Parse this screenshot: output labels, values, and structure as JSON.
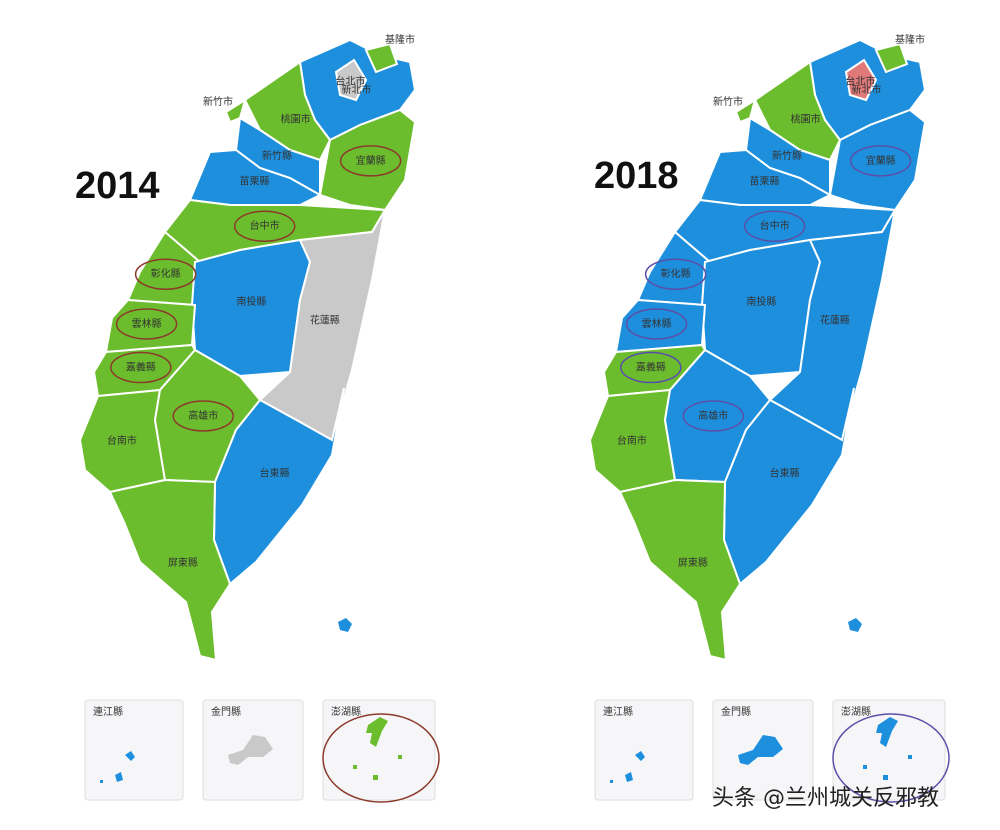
{
  "maps": [
    {
      "year": "2014",
      "circle_color": "#8b3a2a",
      "regions": [
        {
          "name": "新北市",
          "color": "#1e8fdd",
          "circled": false
        },
        {
          "name": "台北市",
          "color": "#c9c9c9",
          "circled": false
        },
        {
          "name": "基隆市",
          "color": "#6cbd2e",
          "circled": false
        },
        {
          "name": "宜蘭縣",
          "color": "#6cbd2e",
          "circled": true
        },
        {
          "name": "桃園市",
          "color": "#6cbd2e",
          "circled": false
        },
        {
          "name": "新竹縣",
          "color": "#1e8fdd",
          "circled": false
        },
        {
          "name": "新竹市",
          "color": "#6cbd2e",
          "circled": false
        },
        {
          "name": "苗栗縣",
          "color": "#1e8fdd",
          "circled": false
        },
        {
          "name": "台中市",
          "color": "#6cbd2e",
          "circled": true
        },
        {
          "name": "彰化縣",
          "color": "#6cbd2e",
          "circled": true
        },
        {
          "name": "南投縣",
          "color": "#1e8fdd",
          "circled": false
        },
        {
          "name": "花蓮縣",
          "color": "#c9c9c9",
          "circled": false
        },
        {
          "name": "雲林縣",
          "color": "#6cbd2e",
          "circled": true
        },
        {
          "name": "嘉義縣",
          "color": "#6cbd2e",
          "circled": true
        },
        {
          "name": "台南市",
          "color": "#6cbd2e",
          "circled": false
        },
        {
          "name": "高雄市",
          "color": "#6cbd2e",
          "circled": true
        },
        {
          "name": "台東縣",
          "color": "#1e8fdd",
          "circled": false
        },
        {
          "name": "屏東縣",
          "color": "#6cbd2e",
          "circled": false
        }
      ],
      "insets": [
        {
          "name": "連江縣",
          "color": "#1e8fdd",
          "circled": false
        },
        {
          "name": "金門縣",
          "color": "#c9c9c9",
          "circled": false
        },
        {
          "name": "澎湖縣",
          "color": "#6cbd2e",
          "circled": true
        }
      ]
    },
    {
      "year": "2018",
      "circle_color": "#5a4fa8",
      "regions": [
        {
          "name": "新北市",
          "color": "#1e8fdd",
          "circled": false
        },
        {
          "name": "台北市",
          "color": "#e07a7a",
          "circled": false
        },
        {
          "name": "基隆市",
          "color": "#6cbd2e",
          "circled": false
        },
        {
          "name": "宜蘭縣",
          "color": "#1e8fdd",
          "circled": true
        },
        {
          "name": "桃園市",
          "color": "#6cbd2e",
          "circled": false
        },
        {
          "name": "新竹縣",
          "color": "#1e8fdd",
          "circled": false
        },
        {
          "name": "新竹市",
          "color": "#6cbd2e",
          "circled": false
        },
        {
          "name": "苗栗縣",
          "color": "#1e8fdd",
          "circled": false
        },
        {
          "name": "台中市",
          "color": "#1e8fdd",
          "circled": true
        },
        {
          "name": "彰化縣",
          "color": "#1e8fdd",
          "circled": true
        },
        {
          "name": "南投縣",
          "color": "#1e8fdd",
          "circled": false
        },
        {
          "name": "花蓮縣",
          "color": "#1e8fdd",
          "circled": false
        },
        {
          "name": "雲林縣",
          "color": "#1e8fdd",
          "circled": true
        },
        {
          "name": "嘉義縣",
          "color": "#6cbd2e",
          "circled": true
        },
        {
          "name": "台南市",
          "color": "#6cbd2e",
          "circled": false
        },
        {
          "name": "高雄市",
          "color": "#1e8fdd",
          "circled": true
        },
        {
          "name": "台東縣",
          "color": "#1e8fdd",
          "circled": false
        },
        {
          "name": "屏東縣",
          "color": "#6cbd2e",
          "circled": false
        }
      ],
      "insets": [
        {
          "name": "連江縣",
          "color": "#1e8fdd",
          "circled": false
        },
        {
          "name": "金門縣",
          "color": "#1e8fdd",
          "circled": false
        },
        {
          "name": "澎湖縣",
          "color": "#1e8fdd",
          "circled": true
        }
      ]
    }
  ],
  "watermark": "头条 @兰州城关反邪教"
}
